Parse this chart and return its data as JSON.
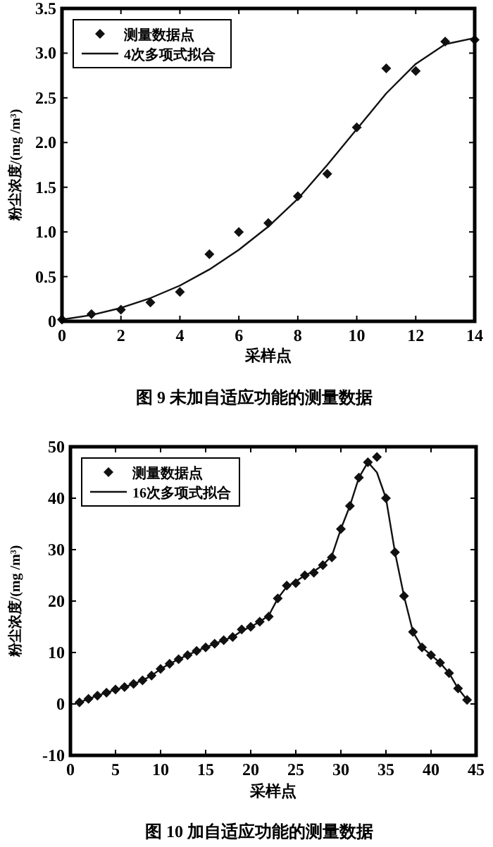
{
  "chart_data": [
    {
      "type": "scatter",
      "title": "图 9 未加自适应功能的测量数据",
      "xlabel": "采样点",
      "ylabel": "粉尘浓度/(mg /m³)",
      "xlim": [
        0,
        14
      ],
      "ylim": [
        0,
        3.5
      ],
      "xticks": [
        0,
        2,
        4,
        6,
        8,
        10,
        12,
        14
      ],
      "yticks": [
        0,
        0.5,
        {
          "value": 1,
          "label": "1.0"
        },
        1.5,
        {
          "value": 2,
          "label": "2.0"
        },
        2.5,
        {
          "value": 3,
          "label": "3.0"
        },
        3.5
      ],
      "legend": "top left",
      "grid": false,
      "series": [
        {
          "name": "测量数据点",
          "type": "scatter",
          "marker": "diamond",
          "color": "#111111",
          "x": [
            0,
            1,
            2,
            3,
            4,
            5,
            6,
            7,
            8,
            9,
            10,
            11,
            12,
            13,
            14
          ],
          "values": [
            0.02,
            0.08,
            0.13,
            0.21,
            0.33,
            0.75,
            1.0,
            1.1,
            1.4,
            1.65,
            2.17,
            2.83,
            2.8,
            3.13,
            3.15
          ]
        },
        {
          "name": "4次多项式拟合",
          "type": "line",
          "line_style": "solid",
          "color": "#111111",
          "x": [
            0,
            1,
            2,
            3,
            4,
            5,
            6,
            7,
            8,
            9,
            10,
            11,
            12,
            13,
            14
          ],
          "values": [
            0.02,
            0.07,
            0.15,
            0.26,
            0.4,
            0.58,
            0.8,
            1.06,
            1.37,
            1.75,
            2.15,
            2.55,
            2.88,
            3.1,
            3.17
          ]
        }
      ]
    },
    {
      "type": "scatter",
      "title": "图 10 加自适应功能的测量数据",
      "xlabel": "采样点",
      "ylabel": "粉尘浓度/(mg /m³)",
      "xlim": [
        0,
        45
      ],
      "ylim": [
        -10,
        50
      ],
      "xticks": [
        0,
        5,
        10,
        15,
        20,
        25,
        30,
        35,
        40,
        45
      ],
      "yticks": [
        -10,
        0,
        10,
        20,
        30,
        40,
        50
      ],
      "legend": "top left",
      "grid": false,
      "series": [
        {
          "name": "测量数据点",
          "type": "scatter",
          "marker": "diamond",
          "color": "#111111",
          "x": [
            1,
            2,
            3,
            4,
            5,
            6,
            7,
            8,
            9,
            10,
            11,
            12,
            13,
            14,
            15,
            16,
            17,
            18,
            19,
            20,
            21,
            22,
            23,
            24,
            25,
            26,
            27,
            28,
            29,
            30,
            31,
            32,
            33,
            34,
            35,
            36,
            37,
            38,
            39,
            40,
            41,
            42,
            43,
            44
          ],
          "values": [
            0.3,
            1,
            1.6,
            2.2,
            2.8,
            3.3,
            3.9,
            4.6,
            5.5,
            6.8,
            7.8,
            8.7,
            9.5,
            10.3,
            11,
            11.7,
            12.4,
            13,
            14.5,
            15,
            16,
            17,
            20.5,
            23,
            23.5,
            25,
            25.5,
            27,
            28.5,
            34,
            38.5,
            44,
            47,
            48,
            40,
            29.5,
            21,
            14,
            11,
            9.5,
            8,
            6,
            3,
            0.8
          ]
        },
        {
          "name": "16次多项式拟合",
          "type": "line",
          "line_style": "solid",
          "color": "#111111",
          "x": [
            1,
            2,
            3,
            4,
            5,
            6,
            7,
            8,
            9,
            10,
            11,
            12,
            13,
            14,
            15,
            16,
            17,
            18,
            19,
            20,
            21,
            22,
            23,
            24,
            25,
            26,
            27,
            28,
            29,
            30,
            31,
            32,
            33,
            34,
            35,
            36,
            37,
            38,
            39,
            40,
            41,
            42,
            43,
            44
          ],
          "values": [
            0.3,
            1,
            1.6,
            2.2,
            2.8,
            3.3,
            3.9,
            4.6,
            5.5,
            6.8,
            7.8,
            8.7,
            9.5,
            10.3,
            11,
            11.7,
            12.4,
            13,
            14.2,
            15,
            16,
            17.2,
            20.5,
            22.8,
            23.8,
            25,
            25.8,
            27,
            28.8,
            34,
            38.5,
            44,
            47,
            45,
            40,
            29.5,
            21,
            14,
            11,
            9.5,
            8,
            6,
            3,
            0.8
          ]
        }
      ]
    }
  ]
}
